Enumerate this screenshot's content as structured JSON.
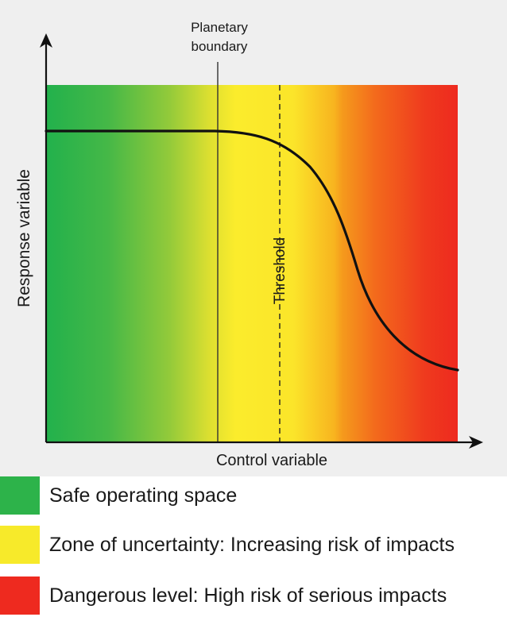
{
  "diagram": {
    "y_axis_label": "Response variable",
    "x_axis_label": "Control variable",
    "boundary_label_line1": "Planetary",
    "boundary_label_line2": "boundary",
    "threshold_label": "Threshold"
  },
  "colors": {
    "safe": "#2db34a",
    "uncertainty": "#f7ea2a",
    "danger": "#ee2a1f",
    "curve": "#111111",
    "background": "#efefef"
  },
  "legend": [
    {
      "label": "Safe operating space",
      "color": "#2db34a"
    },
    {
      "label": "Zone of uncertainty: Increasing risk of impacts",
      "color": "#f7ea2a"
    },
    {
      "label": "Dangerous level: High risk of serious impacts",
      "color": "#ee2a1f"
    }
  ]
}
